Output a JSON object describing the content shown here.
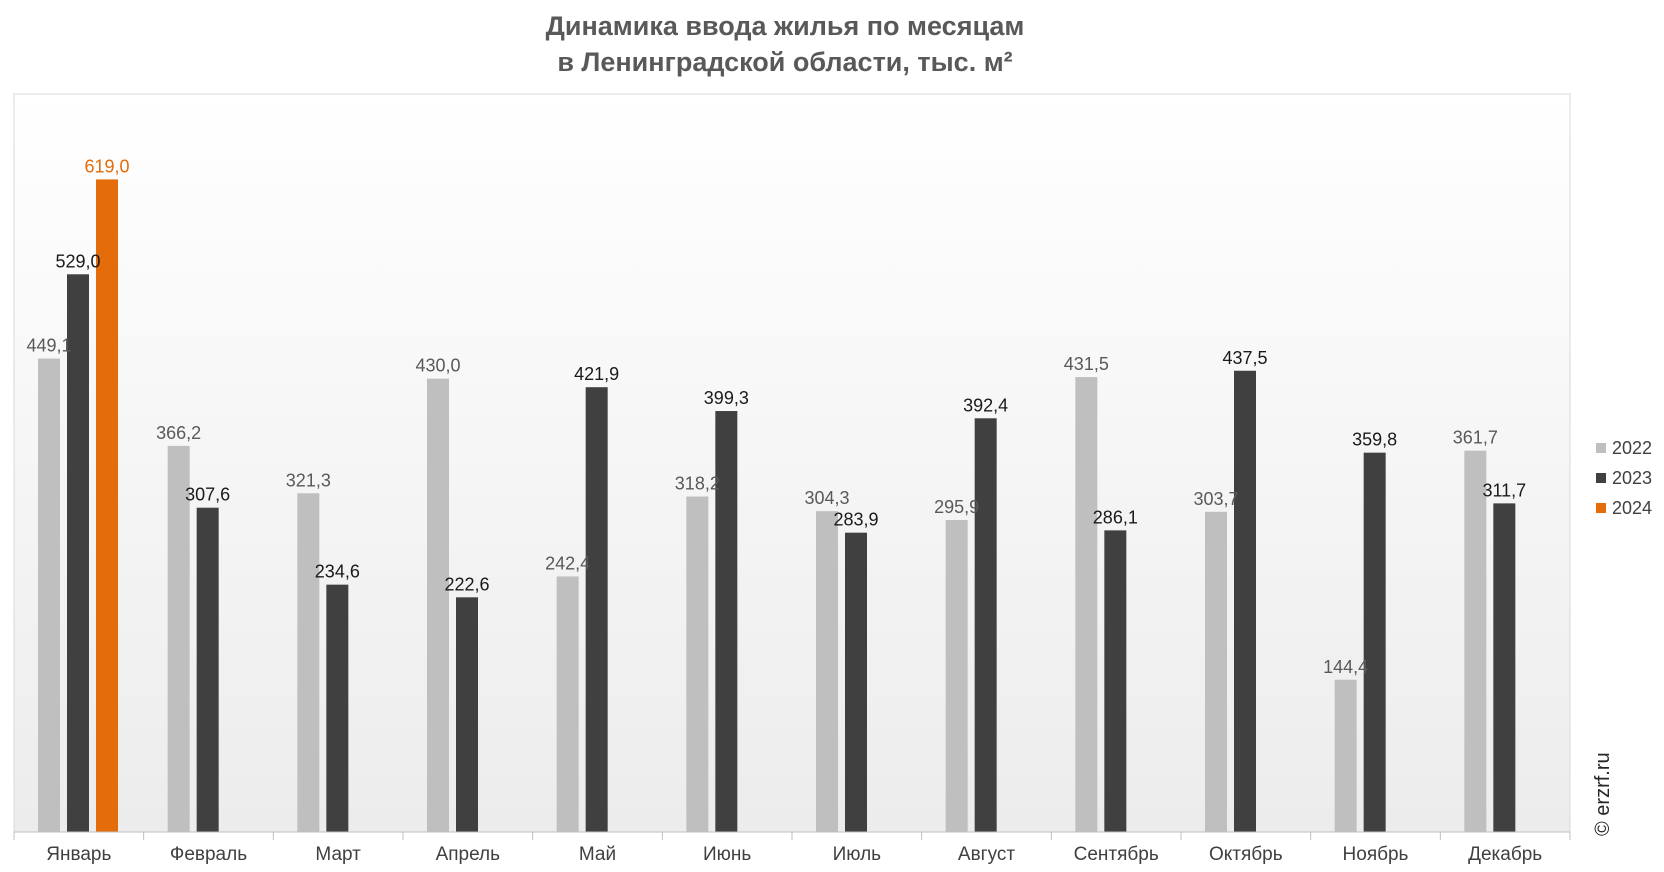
{
  "title_line1": "Динамика ввода жилья по месяцам",
  "title_line2": "в Ленинградской области, тыс. м²",
  "watermark": "© erzrf.ru",
  "chart_data": {
    "type": "bar",
    "title": "Динамика ввода жилья по месяцам в Ленинградской области, тыс. м²",
    "categories": [
      "Январь",
      "Февраль",
      "Март",
      "Апрель",
      "Май",
      "Июнь",
      "Июль",
      "Август",
      "Сентябрь",
      "Октябрь",
      "Ноябрь",
      "Декабрь"
    ],
    "series": [
      {
        "name": "2022",
        "color": "#bfbfbf",
        "label_color": "#595959",
        "values": [
          449.1,
          366.2,
          321.3,
          430.0,
          242.4,
          318.2,
          304.3,
          295.9,
          431.5,
          303.7,
          144.4,
          361.7
        ],
        "labels": [
          "449,1",
          "366,2",
          "321,3",
          "430,0",
          "242,4",
          "318,2",
          "304,3",
          "295,9",
          "431,5",
          "303,7",
          "144,4",
          "361,7"
        ]
      },
      {
        "name": "2023",
        "color": "#404040",
        "label_color": "#1a1a1a",
        "values": [
          529.0,
          307.6,
          234.6,
          222.6,
          421.9,
          399.3,
          283.9,
          392.4,
          286.1,
          437.5,
          359.8,
          311.7
        ],
        "labels": [
          "529,0",
          "307,6",
          "234,6",
          "222,6",
          "421,9",
          "399,3",
          "283,9",
          "392,4",
          "286,1",
          "437,5",
          "359,8",
          "311,7"
        ]
      },
      {
        "name": "2024",
        "color": "#e46c0a",
        "label_color": "#e46c0a",
        "values": [
          619.0,
          null,
          null,
          null,
          null,
          null,
          null,
          null,
          null,
          null,
          null,
          null
        ],
        "labels": [
          "619,0",
          null,
          null,
          null,
          null,
          null,
          null,
          null,
          null,
          null,
          null,
          null
        ]
      }
    ],
    "ylim": [
      0,
      700
    ],
    "legend_position": "right",
    "grid": false
  }
}
